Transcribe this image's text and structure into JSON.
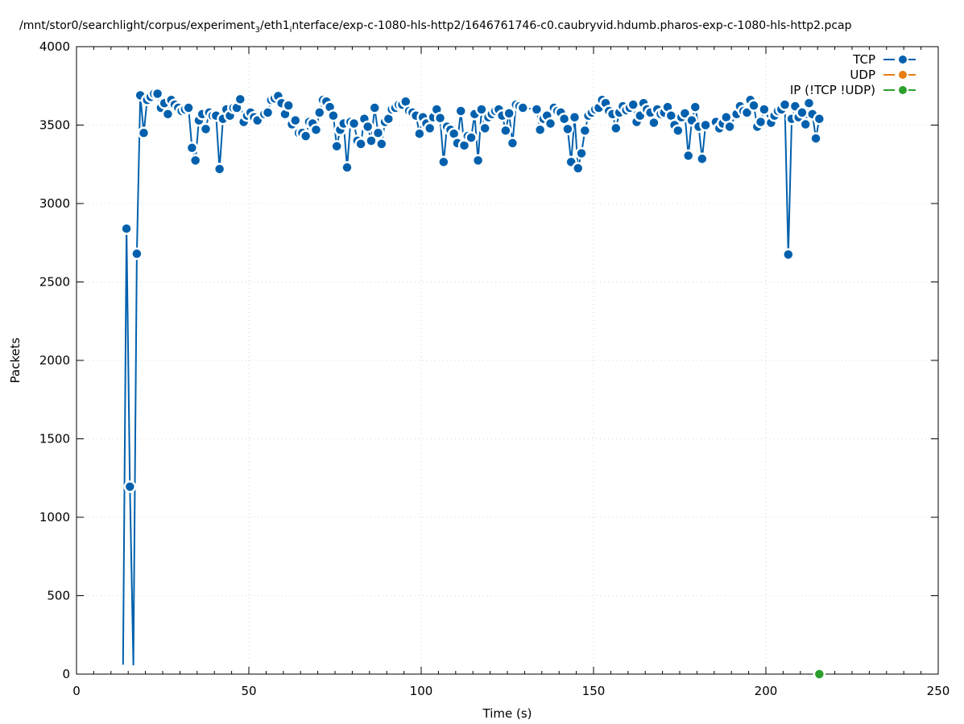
{
  "chart_data": {
    "type": "line",
    "title": "/mnt/stor0/searchlight/corpus/experiment",
    "title_sub1": "3",
    "title_mid": "/eth1",
    "title_sub2": "i",
    "title_rest": "nterface/exp-c-1080-hls-http2/1646761746-c0.caubryvid.hdumb.pharos-exp-c-1080-hls-http2.pcap",
    "xlabel": "Time (s)",
    "ylabel": "Packets",
    "xlim": [
      0,
      250
    ],
    "ylim": [
      0,
      4000
    ],
    "xticks": [
      "0",
      "50",
      "100",
      "150",
      "200",
      "250"
    ],
    "yticks": [
      "0",
      "500",
      "1000",
      "1500",
      "2000",
      "2500",
      "3000",
      "3500",
      "4000"
    ],
    "grid": true,
    "legend_position": "top-right",
    "series": [
      {
        "name": "TCP",
        "color": "#0060ad",
        "points": [
          [
            13.5,
            60
          ],
          [
            14.5,
            2840
          ],
          [
            15.5,
            1195
          ],
          [
            16.5,
            60
          ],
          [
            17.5,
            2680
          ],
          [
            18.5,
            3690
          ],
          [
            19.5,
            3450
          ],
          [
            20.5,
            3660
          ],
          [
            21.5,
            3680
          ],
          [
            22.5,
            3700
          ],
          [
            23.5,
            3700
          ],
          [
            24.5,
            3610
          ],
          [
            25.5,
            3640
          ],
          [
            26.5,
            3570
          ],
          [
            27.5,
            3660
          ],
          [
            28.5,
            3630
          ],
          [
            29.5,
            3610
          ],
          [
            30.5,
            3590
          ],
          [
            31.5,
            3600
          ],
          [
            32.5,
            3610
          ],
          [
            33.5,
            3355
          ],
          [
            34.5,
            3275
          ],
          [
            35.5,
            3530
          ],
          [
            36.5,
            3570
          ],
          [
            37.5,
            3475
          ],
          [
            38.5,
            3580
          ],
          [
            39.5,
            3560
          ],
          [
            40.5,
            3560
          ],
          [
            41.5,
            3220
          ],
          [
            42.5,
            3540
          ],
          [
            43.5,
            3600
          ],
          [
            44.5,
            3560
          ],
          [
            45.5,
            3610
          ],
          [
            46.5,
            3610
          ],
          [
            47.5,
            3665
          ],
          [
            48.5,
            3520
          ],
          [
            49.5,
            3560
          ],
          [
            50.5,
            3580
          ],
          [
            51.5,
            3550
          ],
          [
            52.5,
            3530
          ],
          [
            54.5,
            3570
          ],
          [
            55.5,
            3580
          ],
          [
            56.5,
            3660
          ],
          [
            57.5,
            3670
          ],
          [
            58.5,
            3685
          ],
          [
            59.5,
            3640
          ],
          [
            60.5,
            3570
          ],
          [
            61.5,
            3625
          ],
          [
            62.5,
            3505
          ],
          [
            63.5,
            3530
          ],
          [
            64.5,
            3450
          ],
          [
            65.5,
            3450
          ],
          [
            66.5,
            3430
          ],
          [
            67.5,
            3520
          ],
          [
            68.5,
            3510
          ],
          [
            69.5,
            3470
          ],
          [
            70.5,
            3580
          ],
          [
            71.5,
            3660
          ],
          [
            72.5,
            3650
          ],
          [
            73.5,
            3615
          ],
          [
            74.5,
            3560
          ],
          [
            75.5,
            3365
          ],
          [
            76.5,
            3470
          ],
          [
            77.5,
            3510
          ],
          [
            78.5,
            3230
          ],
          [
            79.5,
            3520
          ],
          [
            80.5,
            3510
          ],
          [
            81.5,
            3400
          ],
          [
            82.5,
            3380
          ],
          [
            83.5,
            3540
          ],
          [
            84.5,
            3490
          ],
          [
            85.5,
            3400
          ],
          [
            86.5,
            3610
          ],
          [
            87.5,
            3450
          ],
          [
            88.5,
            3380
          ],
          [
            89.5,
            3520
          ],
          [
            90.5,
            3540
          ],
          [
            91.5,
            3600
          ],
          [
            92.5,
            3610
          ],
          [
            93.5,
            3630
          ],
          [
            94.5,
            3630
          ],
          [
            95.5,
            3650
          ],
          [
            96.5,
            3590
          ],
          [
            97.5,
            3580
          ],
          [
            98.5,
            3560
          ],
          [
            99.5,
            3445
          ],
          [
            100.5,
            3550
          ],
          [
            101.5,
            3510
          ],
          [
            102.5,
            3480
          ],
          [
            103.5,
            3550
          ],
          [
            104.5,
            3600
          ],
          [
            105.5,
            3545
          ],
          [
            106.5,
            3265
          ],
          [
            107.5,
            3490
          ],
          [
            108.5,
            3470
          ],
          [
            109.5,
            3445
          ],
          [
            110.5,
            3385
          ],
          [
            111.5,
            3590
          ],
          [
            112.5,
            3370
          ],
          [
            113.5,
            3430
          ],
          [
            114.5,
            3420
          ],
          [
            115.5,
            3570
          ],
          [
            116.5,
            3275
          ],
          [
            117.5,
            3600
          ],
          [
            118.5,
            3480
          ],
          [
            119.5,
            3550
          ],
          [
            120.5,
            3570
          ],
          [
            121.5,
            3590
          ],
          [
            122.5,
            3600
          ],
          [
            123.5,
            3560
          ],
          [
            124.5,
            3465
          ],
          [
            125.5,
            3575
          ],
          [
            126.5,
            3385
          ],
          [
            127.5,
            3630
          ],
          [
            128.5,
            3620
          ],
          [
            129.5,
            3610
          ],
          [
            133.5,
            3600
          ],
          [
            134.5,
            3470
          ],
          [
            135.5,
            3540
          ],
          [
            136.5,
            3560
          ],
          [
            137.5,
            3510
          ],
          [
            138.5,
            3610
          ],
          [
            139.5,
            3590
          ],
          [
            140.5,
            3580
          ],
          [
            141.5,
            3540
          ],
          [
            142.5,
            3475
          ],
          [
            143.5,
            3265
          ],
          [
            144.5,
            3550
          ],
          [
            145.5,
            3225
          ],
          [
            146.5,
            3320
          ],
          [
            147.5,
            3465
          ],
          [
            148.5,
            3560
          ],
          [
            149.5,
            3580
          ],
          [
            150.5,
            3600
          ],
          [
            151.5,
            3610
          ],
          [
            152.5,
            3660
          ],
          [
            153.5,
            3640
          ],
          [
            154.5,
            3590
          ],
          [
            155.5,
            3570
          ],
          [
            156.5,
            3480
          ],
          [
            157.5,
            3580
          ],
          [
            158.5,
            3620
          ],
          [
            159.5,
            3595
          ],
          [
            160.5,
            3610
          ],
          [
            161.5,
            3630
          ],
          [
            162.5,
            3520
          ],
          [
            163.5,
            3560
          ],
          [
            164.5,
            3640
          ],
          [
            165.5,
            3600
          ],
          [
            166.5,
            3580
          ],
          [
            167.5,
            3515
          ],
          [
            168.5,
            3600
          ],
          [
            169.5,
            3570
          ],
          [
            170.5,
            3580
          ],
          [
            171.5,
            3615
          ],
          [
            172.5,
            3560
          ],
          [
            173.5,
            3500
          ],
          [
            174.5,
            3465
          ],
          [
            175.5,
            3550
          ],
          [
            176.5,
            3575
          ],
          [
            177.5,
            3305
          ],
          [
            178.5,
            3530
          ],
          [
            179.5,
            3615
          ],
          [
            180.5,
            3490
          ],
          [
            181.5,
            3285
          ],
          [
            182.5,
            3500
          ],
          [
            185.5,
            3520
          ],
          [
            186.5,
            3480
          ],
          [
            187.5,
            3510
          ],
          [
            188.5,
            3550
          ],
          [
            189.5,
            3490
          ],
          [
            191.5,
            3570
          ],
          [
            192.5,
            3620
          ],
          [
            193.5,
            3590
          ],
          [
            194.5,
            3580
          ],
          [
            195.5,
            3660
          ],
          [
            196.5,
            3625
          ],
          [
            197.5,
            3490
          ],
          [
            198.5,
            3520
          ],
          [
            199.5,
            3600
          ],
          [
            201.5,
            3515
          ],
          [
            202.5,
            3560
          ],
          [
            203.5,
            3590
          ],
          [
            204.5,
            3600
          ],
          [
            205.5,
            3630
          ],
          [
            206.5,
            2675
          ],
          [
            207.5,
            3540
          ],
          [
            208.5,
            3620
          ],
          [
            209.5,
            3550
          ],
          [
            210.5,
            3580
          ],
          [
            211.5,
            3505
          ],
          [
            212.5,
            3640
          ],
          [
            213.5,
            3570
          ],
          [
            214.5,
            3415
          ],
          [
            215.5,
            3540
          ]
        ]
      },
      {
        "name": "UDP",
        "color": "#e77d12",
        "points": []
      },
      {
        "name": "IP (!TCP  !UDP)",
        "color": "#2ca02c",
        "points": [
          [
            215.5,
            0
          ]
        ]
      }
    ]
  }
}
